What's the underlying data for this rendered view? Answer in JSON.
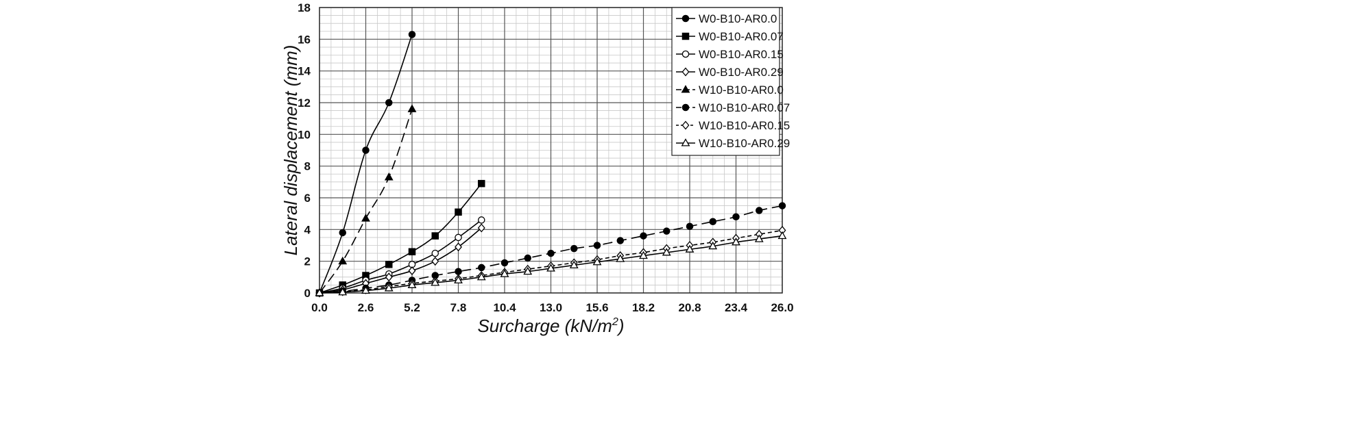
{
  "chart_data": {
    "type": "line",
    "title": "",
    "xlabel": "Surcharge (kN/m",
    "xlabel_sup": "2",
    "xlabel_close": ")",
    "ylabel": "Lateral displacement (mm)",
    "xlim": [
      0,
      26
    ],
    "ylim": [
      0,
      18
    ],
    "xticks": [
      "0.0",
      "2.6",
      "5.2",
      "7.8",
      "10.4",
      "13.0",
      "15.6",
      "18.2",
      "20.8",
      "23.4",
      "26.0"
    ],
    "yticks": [
      "0",
      "2",
      "4",
      "6",
      "8",
      "10",
      "12",
      "14",
      "16",
      "18"
    ],
    "grid": true,
    "legend_position": "top-right",
    "series": [
      {
        "name": "W0-B10-AR0.0",
        "marker": "circle-filled",
        "dash": "solid",
        "x": [
          0,
          1.3,
          2.6,
          3.9,
          5.2
        ],
        "y": [
          0,
          3.8,
          9.0,
          12.0,
          16.3
        ]
      },
      {
        "name": "W0-B10-AR0.07",
        "marker": "square-filled",
        "dash": "solid",
        "x": [
          0,
          1.3,
          2.6,
          3.9,
          5.2,
          6.5,
          7.8,
          9.1
        ],
        "y": [
          0,
          0.5,
          1.1,
          1.8,
          2.6,
          3.6,
          5.1,
          6.9
        ]
      },
      {
        "name": "W0-B10-AR0.15",
        "marker": "circle-open",
        "dash": "solid",
        "x": [
          0,
          1.3,
          2.6,
          3.9,
          5.2,
          6.5,
          7.8,
          9.1
        ],
        "y": [
          0,
          0.3,
          0.8,
          1.2,
          1.8,
          2.5,
          3.5,
          4.6
        ]
      },
      {
        "name": "W0-B10-AR0.29",
        "marker": "diamond-open",
        "dash": "solid",
        "x": [
          0,
          1.3,
          2.6,
          3.9,
          5.2,
          6.5,
          7.8,
          9.1
        ],
        "y": [
          0,
          0.2,
          0.6,
          1.0,
          1.4,
          2.0,
          2.9,
          4.1
        ]
      },
      {
        "name": "W10-B10-AR0.0",
        "marker": "triangle-filled",
        "dash": "longdash",
        "x": [
          0,
          1.3,
          2.6,
          3.9,
          5.2
        ],
        "y": [
          0,
          2.0,
          4.7,
          7.3,
          11.6
        ]
      },
      {
        "name": "W10-B10-AR0.07",
        "marker": "circle-filled",
        "dash": "longdash",
        "x": [
          0,
          1.3,
          2.6,
          3.9,
          5.2,
          6.5,
          7.8,
          9.1,
          10.4,
          11.7,
          13.0,
          14.3,
          15.6,
          16.9,
          18.2,
          19.5,
          20.8,
          22.1,
          23.4,
          24.7,
          26.0
        ],
        "y": [
          0,
          0.1,
          0.3,
          0.5,
          0.8,
          1.1,
          1.35,
          1.6,
          1.9,
          2.2,
          2.5,
          2.8,
          3.0,
          3.3,
          3.6,
          3.9,
          4.2,
          4.5,
          4.8,
          5.2,
          5.5
        ]
      },
      {
        "name": "W10-B10-AR0.15",
        "marker": "diamond-open",
        "dash": "shortdash",
        "x": [
          0,
          1.3,
          2.6,
          3.9,
          5.2,
          6.5,
          7.8,
          9.1,
          10.4,
          11.7,
          13.0,
          14.3,
          15.6,
          16.9,
          18.2,
          19.5,
          20.8,
          22.1,
          23.4,
          24.7,
          26.0
        ],
        "y": [
          0,
          0.08,
          0.2,
          0.4,
          0.6,
          0.75,
          0.9,
          1.1,
          1.3,
          1.5,
          1.7,
          1.9,
          2.1,
          2.35,
          2.55,
          2.8,
          3.0,
          3.2,
          3.45,
          3.7,
          3.95
        ]
      },
      {
        "name": "W10-B10-AR0.29",
        "marker": "triangle-open",
        "dash": "solid",
        "x": [
          0,
          1.3,
          2.6,
          3.9,
          5.2,
          6.5,
          7.8,
          9.1,
          10.4,
          11.7,
          13.0,
          14.3,
          15.6,
          16.9,
          18.2,
          19.5,
          20.8,
          22.1,
          23.4,
          24.7,
          26.0
        ],
        "y": [
          0,
          0.05,
          0.15,
          0.3,
          0.5,
          0.65,
          0.8,
          1.0,
          1.2,
          1.35,
          1.55,
          1.75,
          1.95,
          2.15,
          2.35,
          2.55,
          2.75,
          2.95,
          3.2,
          3.4,
          3.6
        ]
      }
    ]
  }
}
